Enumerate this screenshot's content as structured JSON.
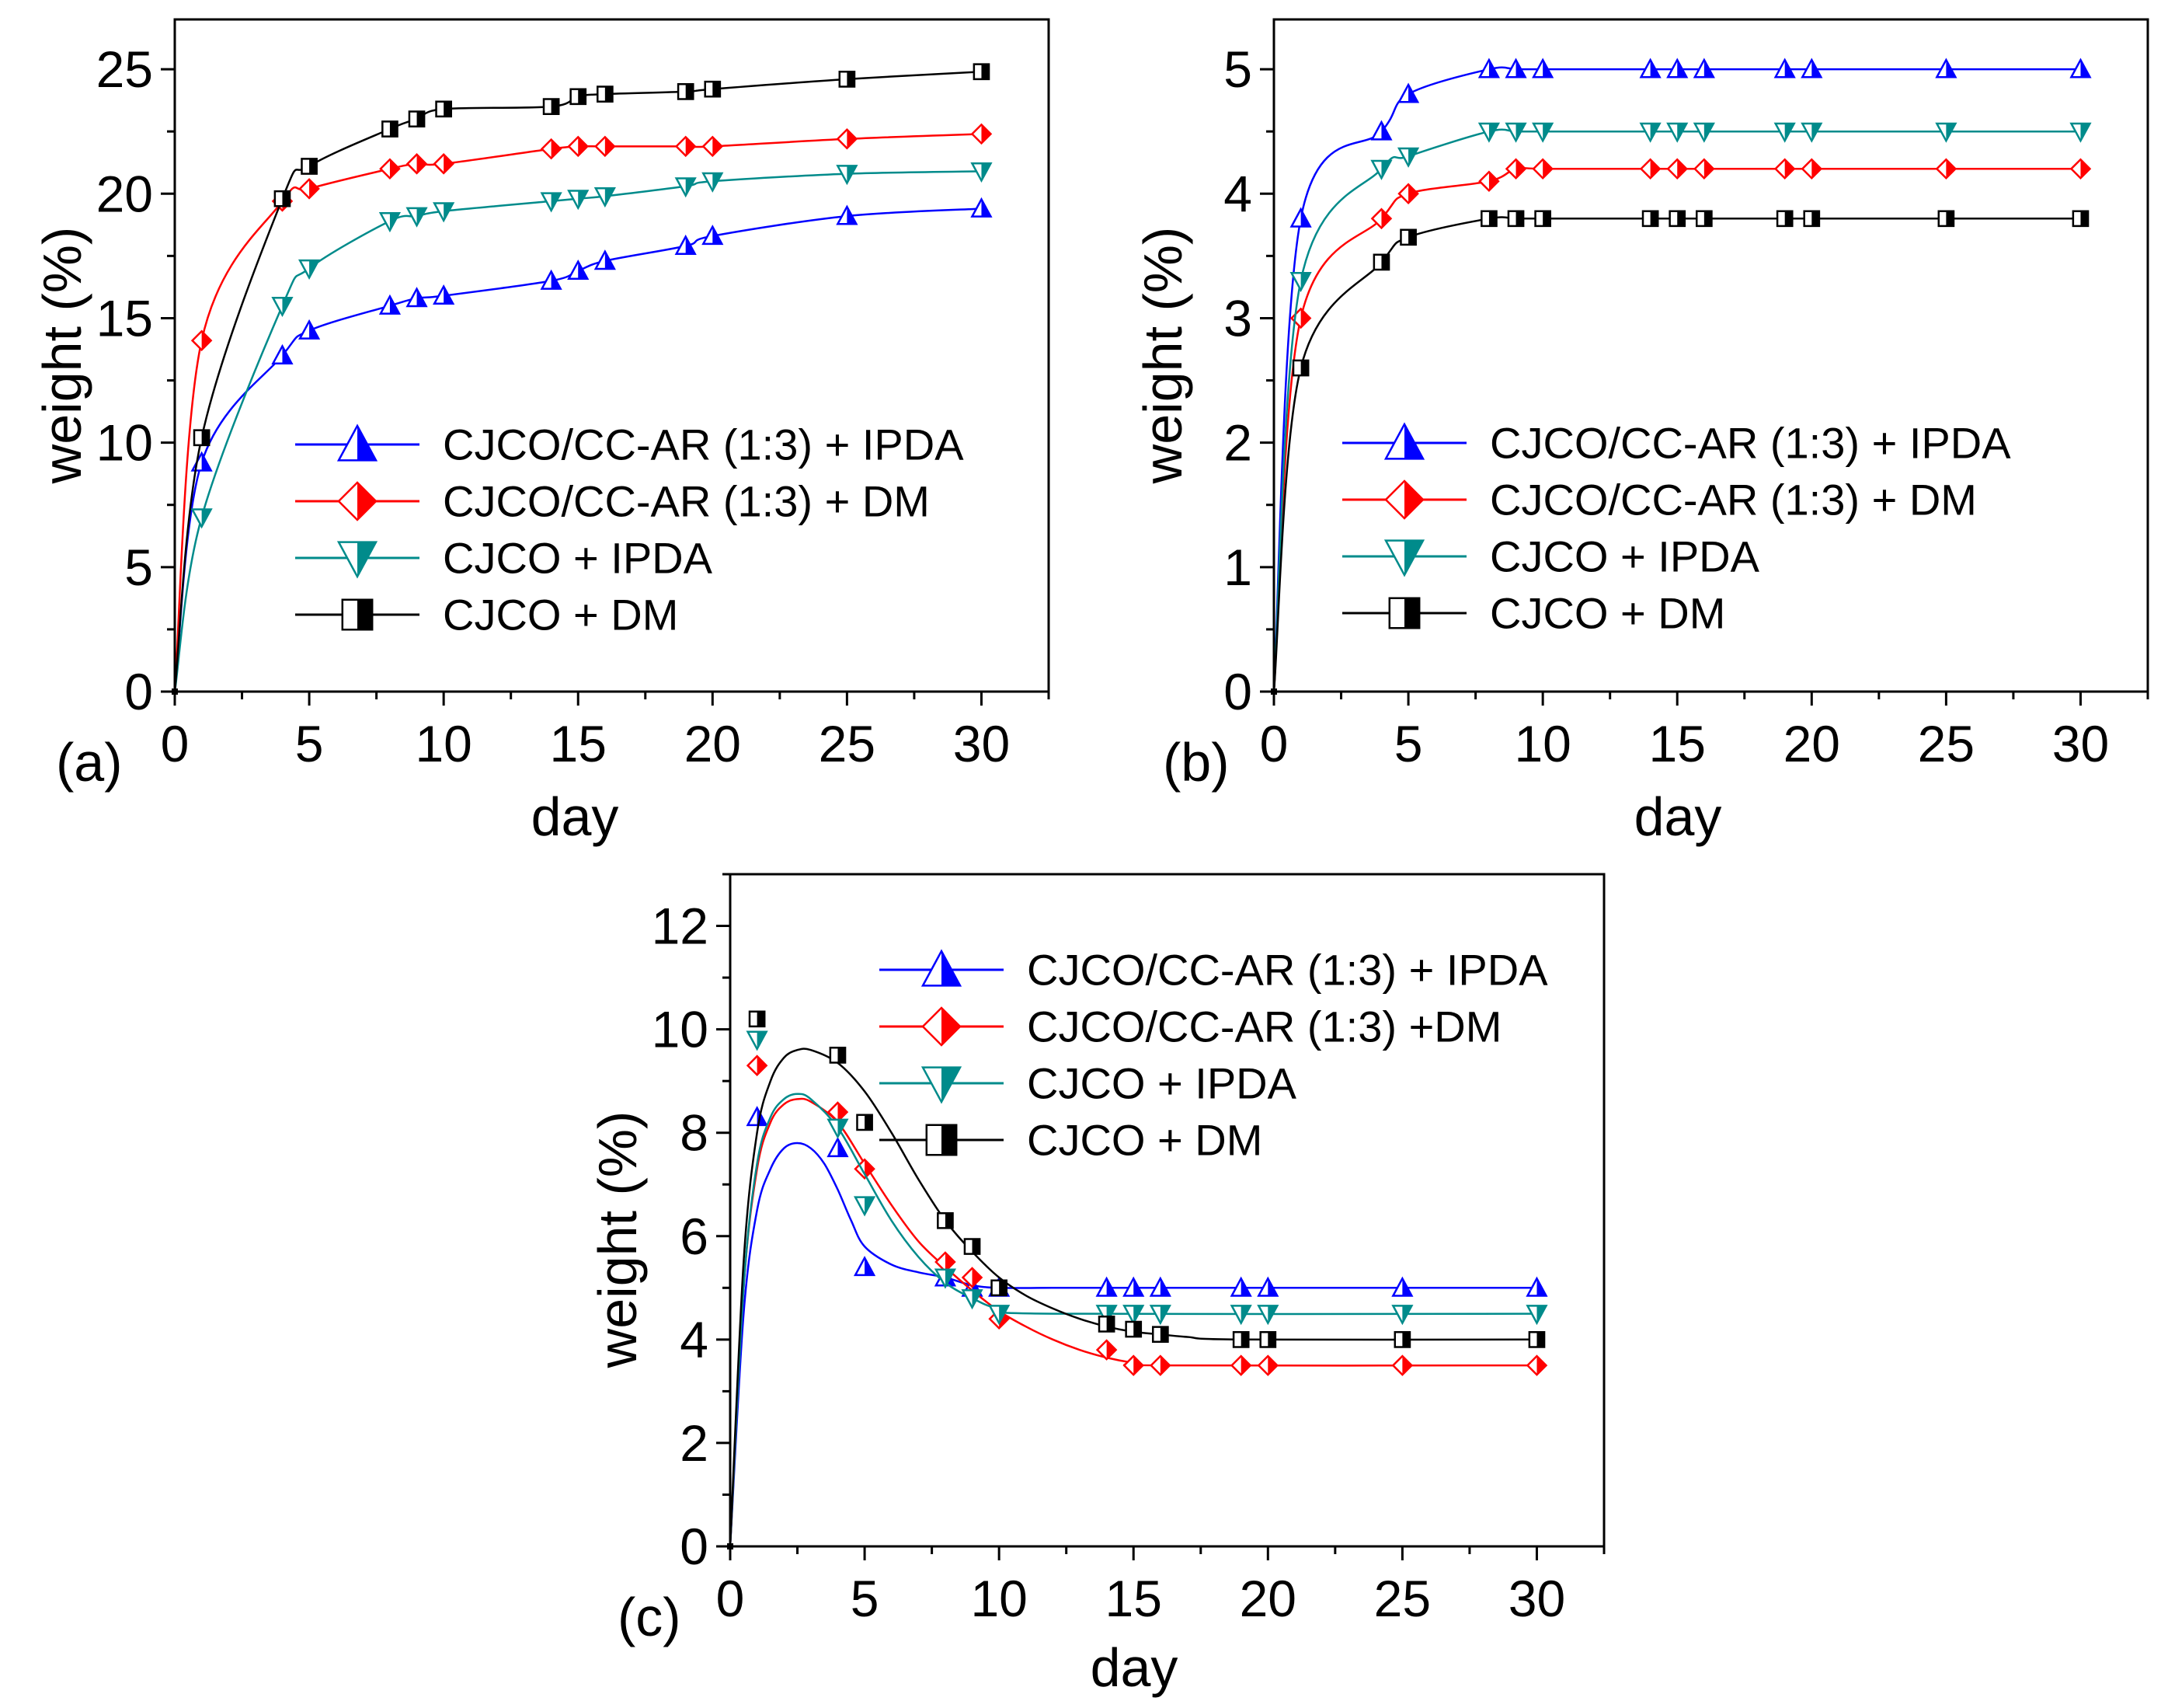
{
  "chart_data": [
    {
      "type": "line",
      "panel_label": "(a)",
      "xlabel": "day",
      "ylabel": "weight (%)",
      "xlim": [
        0,
        32.5
      ],
      "ylim": [
        0,
        27
      ],
      "xticks": [
        0,
        5,
        10,
        15,
        20,
        25,
        30
      ],
      "yticks": [
        0,
        5,
        10,
        15,
        20,
        25
      ],
      "legend_position": "lower-right",
      "series": [
        {
          "name": "CJCO/CC-AR (1:3) + IPDA",
          "color": "#0000ff",
          "marker": "triangle-up",
          "x": [
            0,
            1,
            4,
            5,
            8,
            9,
            10,
            14,
            15,
            16,
            19,
            20,
            25,
            30
          ],
          "y": [
            0,
            9.2,
            13.5,
            14.5,
            15.5,
            15.8,
            15.9,
            16.5,
            16.9,
            17.3,
            17.9,
            18.3,
            19.1,
            19.4
          ]
        },
        {
          "name": "CJCO/CC-AR (1:3) + DM",
          "color": "#ff0000",
          "marker": "diamond",
          "x": [
            0,
            1,
            4,
            5,
            8,
            9,
            10,
            14,
            15,
            16,
            19,
            20,
            25,
            30
          ],
          "y": [
            0,
            14.1,
            19.7,
            20.2,
            21.0,
            21.2,
            21.2,
            21.8,
            21.9,
            21.9,
            21.9,
            21.9,
            22.2,
            22.4
          ]
        },
        {
          "name": "CJCO + IPDA",
          "color": "#008b8b",
          "marker": "triangle-down",
          "x": [
            0,
            1,
            4,
            5,
            8,
            9,
            10,
            14,
            15,
            16,
            19,
            20,
            25,
            30
          ],
          "y": [
            0,
            7.0,
            15.5,
            17.0,
            18.9,
            19.1,
            19.3,
            19.7,
            19.8,
            19.9,
            20.3,
            20.5,
            20.8,
            20.9
          ]
        },
        {
          "name": "CJCO + DM",
          "color": "#000000",
          "marker": "square",
          "x": [
            0,
            1,
            4,
            5,
            8,
            9,
            10,
            14,
            15,
            16,
            19,
            20,
            25,
            30
          ],
          "y": [
            0,
            10.2,
            19.8,
            21.1,
            22.6,
            23.0,
            23.4,
            23.5,
            23.9,
            24.0,
            24.1,
            24.2,
            24.6,
            24.9
          ]
        }
      ]
    },
    {
      "type": "line",
      "panel_label": "(b)",
      "xlabel": "day",
      "ylabel": "weight (%)",
      "xlim": [
        0,
        32.5
      ],
      "ylim": [
        0,
        5.4
      ],
      "xticks": [
        0,
        5,
        10,
        15,
        20,
        25,
        30
      ],
      "yticks": [
        0,
        1,
        2,
        3,
        4,
        5
      ],
      "legend_position": "lower-right",
      "series": [
        {
          "name": "CJCO/CC-AR (1:3)  + IPDA",
          "color": "#0000ff",
          "marker": "triangle-up",
          "x": [
            0,
            1,
            4,
            5,
            8,
            9,
            10,
            14,
            15,
            16,
            19,
            20,
            25,
            30
          ],
          "y": [
            0,
            3.8,
            4.5,
            4.8,
            5.0,
            5.0,
            5.0,
            5.0,
            5.0,
            5.0,
            5.0,
            5.0,
            5.0,
            5.0
          ]
        },
        {
          "name": "CJCO/CC-AR (1:3) + DM",
          "color": "#ff0000",
          "marker": "diamond",
          "x": [
            0,
            1,
            4,
            5,
            8,
            9,
            10,
            14,
            15,
            16,
            19,
            20,
            25,
            30
          ],
          "y": [
            0,
            3.0,
            3.8,
            4.0,
            4.1,
            4.2,
            4.2,
            4.2,
            4.2,
            4.2,
            4.2,
            4.2,
            4.2,
            4.2
          ]
        },
        {
          "name": "CJCO + IPDA",
          "color": "#008b8b",
          "marker": "triangle-down",
          "x": [
            0,
            1,
            4,
            5,
            8,
            9,
            10,
            14,
            15,
            16,
            19,
            20,
            25,
            30
          ],
          "y": [
            0,
            3.3,
            4.2,
            4.3,
            4.5,
            4.5,
            4.5,
            4.5,
            4.5,
            4.5,
            4.5,
            4.5,
            4.5,
            4.5
          ]
        },
        {
          "name": "CJCO + DM",
          "color": "#000000",
          "marker": "square",
          "x": [
            0,
            1,
            4,
            5,
            8,
            9,
            10,
            14,
            15,
            16,
            19,
            20,
            25,
            30
          ],
          "y": [
            0,
            2.6,
            3.45,
            3.65,
            3.8,
            3.8,
            3.8,
            3.8,
            3.8,
            3.8,
            3.8,
            3.8,
            3.8,
            3.8
          ]
        }
      ]
    },
    {
      "type": "line",
      "panel_label": "(c)",
      "xlabel": "day",
      "ylabel": "weight (%)",
      "xlim": [
        0,
        32.5
      ],
      "ylim": [
        0,
        13
      ],
      "xticks": [
        0,
        5,
        10,
        15,
        20,
        25,
        30
      ],
      "yticks": [
        0,
        2,
        4,
        6,
        8,
        10,
        12
      ],
      "legend_position": "top-right",
      "series": [
        {
          "name": "CJCO/CC-AR (1:3) + IPDA",
          "color": "#0000ff",
          "marker": "triangle-up",
          "x": [
            0,
            1,
            4,
            5,
            8,
            9,
            10,
            14,
            15,
            16,
            19,
            20,
            25,
            30
          ],
          "y": [
            0,
            8.3,
            7.7,
            5.4,
            5.2,
            5.0,
            5.0,
            5.0,
            5.0,
            5.0,
            5.0,
            5.0,
            5.0,
            5.0
          ],
          "curve": [
            [
              0,
              0
            ],
            [
              0.5,
              4.5
            ],
            [
              1,
              6.5
            ],
            [
              1.5,
              7.3
            ],
            [
              2,
              7.7
            ],
            [
              2.5,
              7.8
            ],
            [
              3,
              7.7
            ],
            [
              3.5,
              7.4
            ],
            [
              4,
              6.9
            ],
            [
              4.5,
              6.3
            ],
            [
              5,
              5.8
            ],
            [
              6,
              5.45
            ],
            [
              7,
              5.3
            ],
            [
              8,
              5.2
            ],
            [
              9,
              5.05
            ],
            [
              10,
              5.0
            ],
            [
              12,
              5.0
            ],
            [
              15,
              5.0
            ],
            [
              30,
              5.0
            ]
          ]
        },
        {
          "name": "CJCO/CC-AR (1:3) +DM",
          "color": "#ff0000",
          "marker": "diamond",
          "x": [
            0,
            1,
            4,
            5,
            8,
            9,
            10,
            14,
            15,
            16,
            19,
            20,
            25,
            30
          ],
          "y": [
            0,
            9.3,
            8.4,
            7.3,
            5.5,
            5.2,
            4.4,
            3.8,
            3.5,
            3.5,
            3.5,
            3.5,
            3.5,
            3.5
          ],
          "curve": [
            [
              0,
              0
            ],
            [
              0.5,
              5
            ],
            [
              1,
              7.3
            ],
            [
              1.5,
              8.2
            ],
            [
              2,
              8.55
            ],
            [
              2.5,
              8.65
            ],
            [
              3,
              8.6
            ],
            [
              4,
              8.2
            ],
            [
              5,
              7.4
            ],
            [
              6,
              6.6
            ],
            [
              7,
              5.9
            ],
            [
              8,
              5.4
            ],
            [
              9,
              4.95
            ],
            [
              10,
              4.55
            ],
            [
              11,
              4.25
            ],
            [
              12,
              4.0
            ],
            [
              13,
              3.8
            ],
            [
              14,
              3.65
            ],
            [
              15,
              3.55
            ],
            [
              16,
              3.5
            ],
            [
              30,
              3.5
            ]
          ]
        },
        {
          "name": "CJCO + IPDA",
          "color": "#008b8b",
          "marker": "triangle-down",
          "x": [
            0,
            1,
            4,
            5,
            8,
            9,
            10,
            14,
            15,
            16,
            19,
            20,
            25,
            30
          ],
          "y": [
            0,
            9.8,
            8.1,
            6.6,
            5.2,
            4.8,
            4.5,
            4.5,
            4.5,
            4.5,
            4.5,
            4.5,
            4.5,
            4.5
          ],
          "curve": [
            [
              0,
              0
            ],
            [
              0.5,
              5
            ],
            [
              1,
              7.4
            ],
            [
              1.5,
              8.3
            ],
            [
              2,
              8.65
            ],
            [
              2.5,
              8.75
            ],
            [
              3,
              8.65
            ],
            [
              4,
              8.1
            ],
            [
              5,
              7.2
            ],
            [
              6,
              6.3
            ],
            [
              7,
              5.6
            ],
            [
              8,
              5.1
            ],
            [
              9,
              4.8
            ],
            [
              10,
              4.6
            ],
            [
              12,
              4.5
            ],
            [
              30,
              4.5
            ]
          ]
        },
        {
          "name": "CJCO + DM",
          "color": "#000000",
          "marker": "square",
          "x": [
            0,
            1,
            4,
            5,
            8,
            9,
            10,
            14,
            15,
            16,
            19,
            20,
            25,
            30
          ],
          "y": [
            0,
            10.2,
            9.5,
            8.2,
            6.3,
            5.8,
            5.0,
            4.3,
            4.2,
            4.1,
            4.0,
            4.0,
            4.0,
            4.0
          ],
          "curve": [
            [
              0,
              0
            ],
            [
              0.5,
              5.5
            ],
            [
              1,
              8.0
            ],
            [
              1.5,
              9.0
            ],
            [
              2,
              9.45
            ],
            [
              2.5,
              9.6
            ],
            [
              3,
              9.6
            ],
            [
              4,
              9.35
            ],
            [
              5,
              8.8
            ],
            [
              6,
              8.0
            ],
            [
              7,
              7.1
            ],
            [
              8,
              6.3
            ],
            [
              9,
              5.7
            ],
            [
              10,
              5.2
            ],
            [
              11,
              4.85
            ],
            [
              12,
              4.6
            ],
            [
              13,
              4.4
            ],
            [
              14,
              4.25
            ],
            [
              15,
              4.15
            ],
            [
              16,
              4.1
            ],
            [
              17,
              4.05
            ],
            [
              19,
              4.0
            ],
            [
              30,
              4.0
            ]
          ]
        }
      ]
    }
  ]
}
